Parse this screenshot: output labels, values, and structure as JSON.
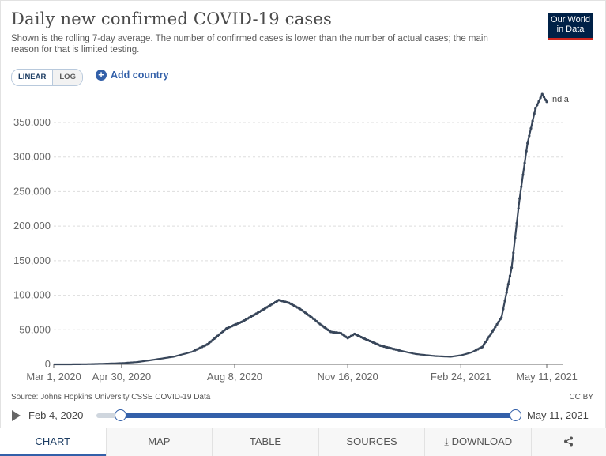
{
  "header": {
    "title": "Daily new confirmed COVID-19 cases",
    "subtitle": "Shown is the rolling 7-day average. The number of confirmed cases is lower than the number of actual cases; the main reason for that is limited testing.",
    "logo_line1": "Our World",
    "logo_line2": "in Data"
  },
  "controls": {
    "linear_label": "LINEAR",
    "log_label": "LOG",
    "add_country_label": "Add country"
  },
  "footer": {
    "source": "Source: Johns Hopkins University CSSE COVID-19 Data",
    "license": "CC BY"
  },
  "timeline": {
    "start_label": "Feb 4, 2020",
    "end_label": "May 11, 2021",
    "range_start_fraction": 0.057,
    "range_end_fraction": 1.0
  },
  "tabs": [
    "CHART",
    "MAP",
    "TABLE",
    "SOURCES",
    "DOWNLOAD"
  ],
  "colors": {
    "series": "#38465a",
    "accent": "#3360a9",
    "brand": "#002147"
  },
  "chart_data": {
    "type": "line",
    "title": "Daily new confirmed COVID-19 cases",
    "xlabel": "",
    "ylabel": "",
    "ylim": [
      0,
      390000
    ],
    "y_ticks": [
      0,
      50000,
      100000,
      150000,
      200000,
      250000,
      300000,
      350000
    ],
    "y_tick_labels": [
      "0",
      "50,000",
      "100,000",
      "150,000",
      "200,000",
      "250,000",
      "300,000",
      "350,000"
    ],
    "x_ticks": [
      "2020-03-01",
      "2020-04-30",
      "2020-08-08",
      "2020-11-16",
      "2021-02-24",
      "2021-05-11"
    ],
    "x_tick_labels": [
      "Mar 1, 2020",
      "Apr 30, 2020",
      "Aug 8, 2020",
      "Nov 16, 2020",
      "Feb 24, 2021",
      "May 11, 2021"
    ],
    "grid": true,
    "series": [
      {
        "name": "India",
        "points": [
          [
            "2020-03-01",
            0
          ],
          [
            "2020-03-15",
            10
          ],
          [
            "2020-04-01",
            300
          ],
          [
            "2020-04-15",
            900
          ],
          [
            "2020-05-01",
            1800
          ],
          [
            "2020-05-15",
            3500
          ],
          [
            "2020-06-01",
            7500
          ],
          [
            "2020-06-15",
            11000
          ],
          [
            "2020-07-01",
            18000
          ],
          [
            "2020-07-15",
            29000
          ],
          [
            "2020-08-01",
            52000
          ],
          [
            "2020-08-08",
            57000
          ],
          [
            "2020-08-15",
            62000
          ],
          [
            "2020-09-01",
            78000
          ],
          [
            "2020-09-16",
            93000
          ],
          [
            "2020-09-25",
            89000
          ],
          [
            "2020-10-05",
            80000
          ],
          [
            "2020-10-15",
            68000
          ],
          [
            "2020-10-25",
            55000
          ],
          [
            "2020-11-01",
            47000
          ],
          [
            "2020-11-10",
            45000
          ],
          [
            "2020-11-16",
            38000
          ],
          [
            "2020-11-22",
            44000
          ],
          [
            "2020-12-01",
            37000
          ],
          [
            "2020-12-15",
            27000
          ],
          [
            "2021-01-01",
            20000
          ],
          [
            "2021-01-15",
            15000
          ],
          [
            "2021-02-01",
            12000
          ],
          [
            "2021-02-15",
            11000
          ],
          [
            "2021-02-24",
            13000
          ],
          [
            "2021-03-05",
            17000
          ],
          [
            "2021-03-15",
            25000
          ],
          [
            "2021-03-25",
            50000
          ],
          [
            "2021-04-01",
            68000
          ],
          [
            "2021-04-10",
            140000
          ],
          [
            "2021-04-17",
            240000
          ],
          [
            "2021-04-24",
            320000
          ],
          [
            "2021-05-01",
            370000
          ],
          [
            "2021-05-07",
            391000
          ],
          [
            "2021-05-11",
            380000
          ]
        ]
      }
    ]
  }
}
